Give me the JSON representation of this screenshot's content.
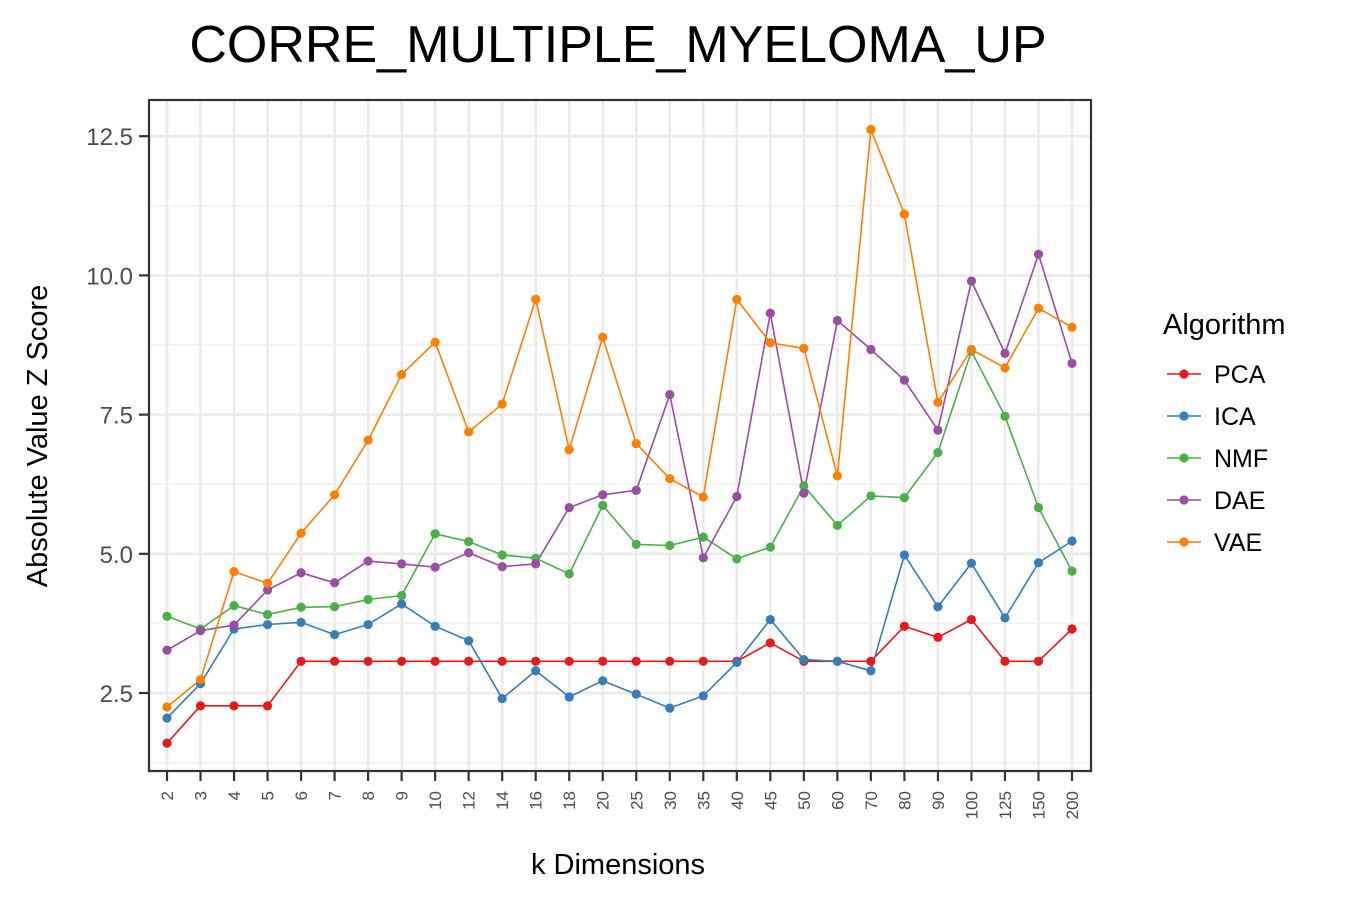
{
  "chart_data": {
    "type": "line",
    "title": "CORRE_MULTIPLE_MYELOMA_UP",
    "xlabel": "k Dimensions",
    "ylabel": "Absolute Value Z Score",
    "ylim": [
      1.1,
      13.15
    ],
    "yticks": [
      2.5,
      5.0,
      7.5,
      10.0,
      12.5
    ],
    "ytick_labels": [
      "2.5",
      "5.0",
      "7.5",
      "10.0",
      "12.5"
    ],
    "categories": [
      "2",
      "3",
      "4",
      "5",
      "6",
      "7",
      "8",
      "9",
      "10",
      "12",
      "14",
      "16",
      "18",
      "20",
      "25",
      "30",
      "35",
      "40",
      "45",
      "50",
      "60",
      "70",
      "80",
      "90",
      "100",
      "125",
      "150",
      "200"
    ],
    "grid": true,
    "legend": {
      "title": "Algorithm",
      "placement": "right"
    },
    "series": [
      {
        "name": "PCA",
        "color": "#e41a1c",
        "values": [
          1.6,
          2.27,
          2.27,
          2.27,
          3.07,
          3.07,
          3.07,
          3.07,
          3.07,
          3.07,
          3.07,
          3.07,
          3.07,
          3.07,
          3.07,
          3.07,
          3.07,
          3.07,
          3.4,
          3.07,
          3.07,
          3.07,
          3.7,
          3.5,
          3.82,
          3.07,
          3.07,
          3.65
        ]
      },
      {
        "name": "ICA",
        "color": "#377eb8",
        "values": [
          2.05,
          2.67,
          3.65,
          3.73,
          3.77,
          3.55,
          3.73,
          4.1,
          3.7,
          3.44,
          2.4,
          2.9,
          2.43,
          2.72,
          2.48,
          2.23,
          2.45,
          3.05,
          3.82,
          3.1,
          3.07,
          2.9,
          4.98,
          4.05,
          4.83,
          3.85,
          4.84,
          5.23
        ]
      },
      {
        "name": "NMF",
        "color": "#4daf4a",
        "values": [
          3.88,
          3.65,
          4.07,
          3.91,
          4.04,
          4.05,
          4.18,
          4.25,
          5.36,
          5.22,
          4.98,
          4.92,
          4.64,
          5.87,
          5.17,
          5.15,
          5.3,
          4.91,
          5.12,
          6.22,
          5.51,
          6.04,
          6.01,
          6.82,
          8.64,
          7.47,
          5.83,
          4.69
        ]
      },
      {
        "name": "DAE",
        "color": "#984ea3",
        "values": [
          3.27,
          3.62,
          3.72,
          4.35,
          4.66,
          4.48,
          4.87,
          4.82,
          4.76,
          5.02,
          4.77,
          4.82,
          5.83,
          6.06,
          6.14,
          7.86,
          4.93,
          6.03,
          9.32,
          6.09,
          9.19,
          8.67,
          8.12,
          7.22,
          9.9,
          8.6,
          10.38,
          8.42
        ]
      },
      {
        "name": "VAE",
        "color": "#ff7f00",
        "values": [
          2.25,
          2.74,
          4.68,
          4.47,
          5.37,
          6.06,
          7.04,
          8.22,
          8.8,
          7.19,
          7.69,
          9.57,
          6.87,
          8.89,
          6.98,
          6.35,
          6.02,
          9.57,
          8.79,
          8.69,
          6.4,
          12.62,
          11.1,
          7.72,
          8.67,
          8.34,
          9.41,
          9.07
        ]
      }
    ]
  }
}
